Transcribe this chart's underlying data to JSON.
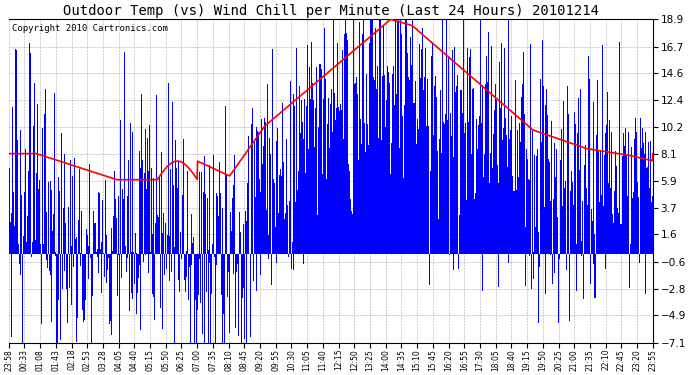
{
  "title": "Outdoor Temp (vs) Wind Chill per Minute (Last 24 Hours) 20101214",
  "copyright": "Copyright 2010 Cartronics.com",
  "yticks": [
    18.9,
    16.7,
    14.6,
    12.4,
    10.2,
    8.1,
    5.9,
    3.7,
    1.6,
    -0.6,
    -2.8,
    -4.9,
    -7.1
  ],
  "ylim": [
    -7.1,
    18.9
  ],
  "xtick_labels": [
    "23:58",
    "00:33",
    "01:08",
    "01:43",
    "02:18",
    "02:53",
    "03:28",
    "04:05",
    "04:40",
    "05:15",
    "05:50",
    "06:25",
    "07:00",
    "07:35",
    "08:10",
    "08:45",
    "09:20",
    "09:55",
    "10:30",
    "11:05",
    "11:40",
    "12:15",
    "12:50",
    "13:25",
    "14:00",
    "14:35",
    "15:10",
    "15:45",
    "16:20",
    "16:55",
    "17:30",
    "18:05",
    "18:40",
    "19:15",
    "19:50",
    "20:25",
    "21:00",
    "21:35",
    "22:10",
    "22:45",
    "23:20",
    "23:55"
  ],
  "bar_color": "#0000ff",
  "line_color": "#ff0000",
  "background_color": "#ffffff",
  "grid_color": "#aaaaaa",
  "title_fontsize": 10,
  "copyright_fontsize": 6.5
}
